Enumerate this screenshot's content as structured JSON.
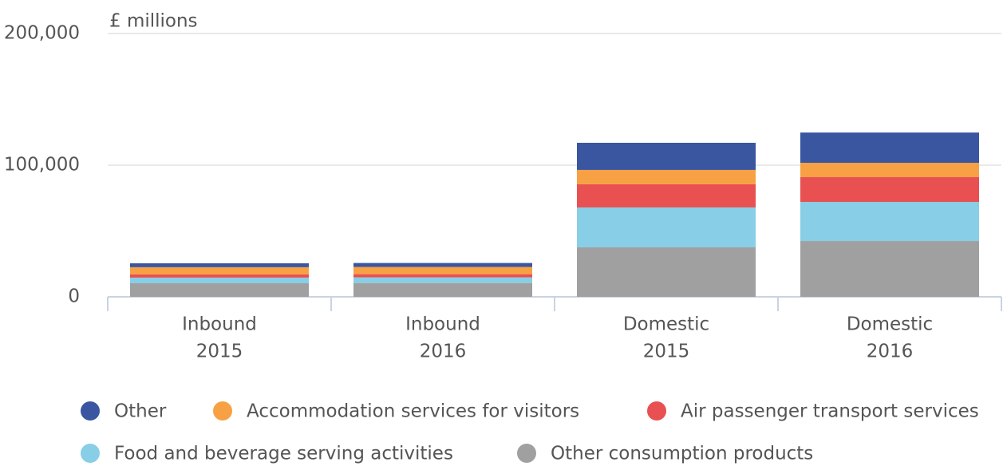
{
  "chart_data": {
    "type": "stacked_bar",
    "ylabel": "£ millions",
    "categories": [
      [
        "Inbound",
        "2015"
      ],
      [
        "Inbound",
        "2016"
      ],
      [
        "Domestic",
        "2015"
      ],
      [
        "Domestic",
        "2016"
      ]
    ],
    "series": [
      {
        "name": "Other",
        "color": "#3a56a0",
        "values": [
          3000,
          3000,
          20600,
          23000
        ]
      },
      {
        "name": "Accommodation services for visitors",
        "color": "#f7a144",
        "values": [
          5500,
          5500,
          10900,
          10900
        ]
      },
      {
        "name": "Air passenger transport services",
        "color": "#e85052",
        "values": [
          2400,
          2400,
          17600,
          18800
        ]
      },
      {
        "name": "Food and beverage serving activities",
        "color": "#87cee6",
        "values": [
          4300,
          4300,
          30300,
          29700
        ]
      },
      {
        "name": "Other consumption products",
        "color": "#a0a0a0",
        "values": [
          10300,
          10500,
          37600,
          42400
        ]
      }
    ],
    "ylim": [
      0,
      200000
    ],
    "yticks": [
      0,
      {
        "value": 100000,
        "label": "100,000"
      },
      {
        "value": 200000,
        "label": "200,000"
      }
    ],
    "grid": true
  }
}
